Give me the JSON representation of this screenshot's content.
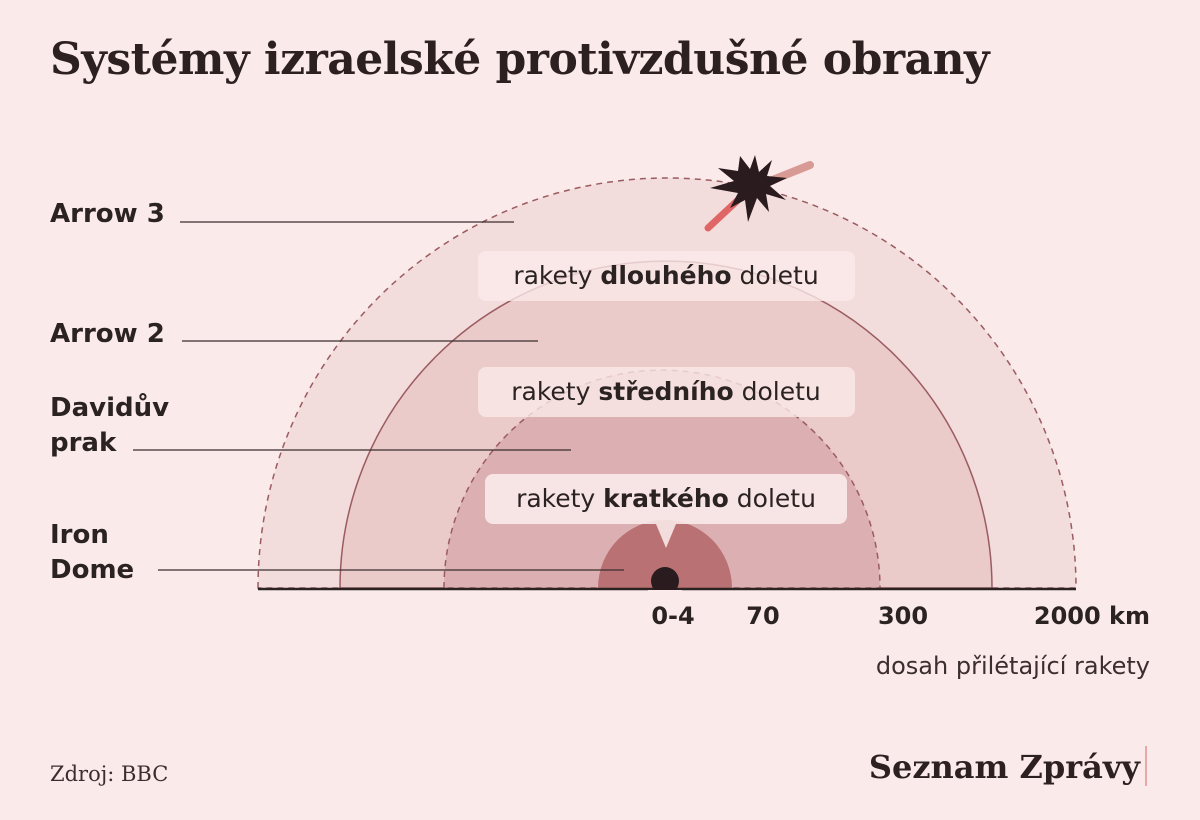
{
  "title": "Systémy izraelské protivzdušné obrany",
  "systems": [
    {
      "key": "arrow3",
      "label_lines": [
        "Arrow 3"
      ]
    },
    {
      "key": "arrow2",
      "label_lines": [
        "Arrow 2"
      ]
    },
    {
      "key": "davids-sling",
      "label_lines": [
        "Davidův",
        "prak"
      ]
    },
    {
      "key": "iron-dome",
      "label_lines": [
        "Iron",
        "Dome"
      ]
    }
  ],
  "range_bands": [
    {
      "key": "long",
      "pre": "rakety ",
      "bold": "dlouhého",
      "post": " doletu"
    },
    {
      "key": "medium",
      "pre": "rakety ",
      "bold": "středního",
      "post": " doletu"
    },
    {
      "key": "short",
      "pre": "rakety ",
      "bold": "kratkého",
      "post": " doletu"
    }
  ],
  "axis": {
    "ticks": [
      "0-4",
      "70",
      "300",
      "2000 km"
    ],
    "label": "dosah přilétající rakety"
  },
  "source": "Zdroj: BBC",
  "brand": "Seznam Zprávy",
  "colors": {
    "background": "#fbeaea",
    "arc_outer": "#f3dcdc",
    "arc_2": "#ebcaca",
    "arc_3": "#dcb0b2",
    "arc_inner": "#b97173",
    "stroke": "#9a5c60",
    "missile": "#e06666",
    "missile_incoming": "#d89a94",
    "explosion": "#2a1b1e"
  }
}
